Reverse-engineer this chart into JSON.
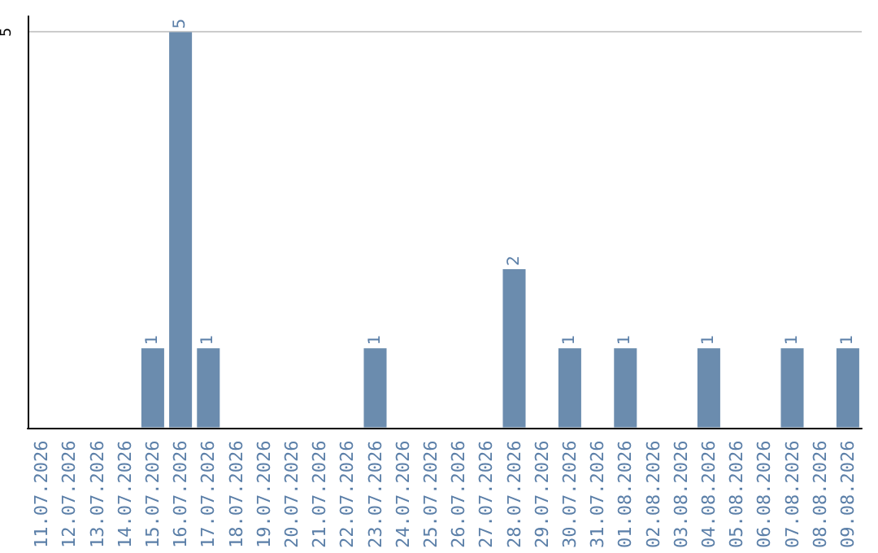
{
  "chart_data": {
    "type": "bar",
    "categories": [
      "11.07.2026",
      "12.07.2026",
      "13.07.2026",
      "14.07.2026",
      "15.07.2026",
      "16.07.2026",
      "17.07.2026",
      "18.07.2026",
      "19.07.2026",
      "20.07.2026",
      "21.07.2026",
      "22.07.2026",
      "23.07.2026",
      "24.07.2026",
      "25.07.2026",
      "26.07.2026",
      "27.07.2026",
      "28.07.2026",
      "29.07.2026",
      "30.07.2026",
      "31.07.2026",
      "01.08.2026",
      "02.08.2026",
      "03.08.2026",
      "04.08.2026",
      "05.08.2026",
      "06.08.2026",
      "07.08.2026",
      "08.08.2026",
      "09.08.2026"
    ],
    "values": [
      0,
      0,
      0,
      0,
      1,
      5,
      1,
      0,
      0,
      0,
      0,
      0,
      1,
      0,
      0,
      0,
      0,
      2,
      0,
      1,
      0,
      1,
      0,
      0,
      1,
      0,
      0,
      1,
      0,
      1
    ],
    "value_labels": [
      null,
      null,
      null,
      null,
      "1",
      "5",
      "1",
      null,
      null,
      null,
      null,
      null,
      "1",
      null,
      null,
      null,
      null,
      "2",
      null,
      "1",
      null,
      "1",
      null,
      null,
      "1",
      null,
      null,
      "1",
      null,
      "1"
    ],
    "color": "#6b8cae",
    "ylim": [
      0,
      5.2
    ],
    "yticks": [
      5
    ],
    "grid": "y"
  }
}
